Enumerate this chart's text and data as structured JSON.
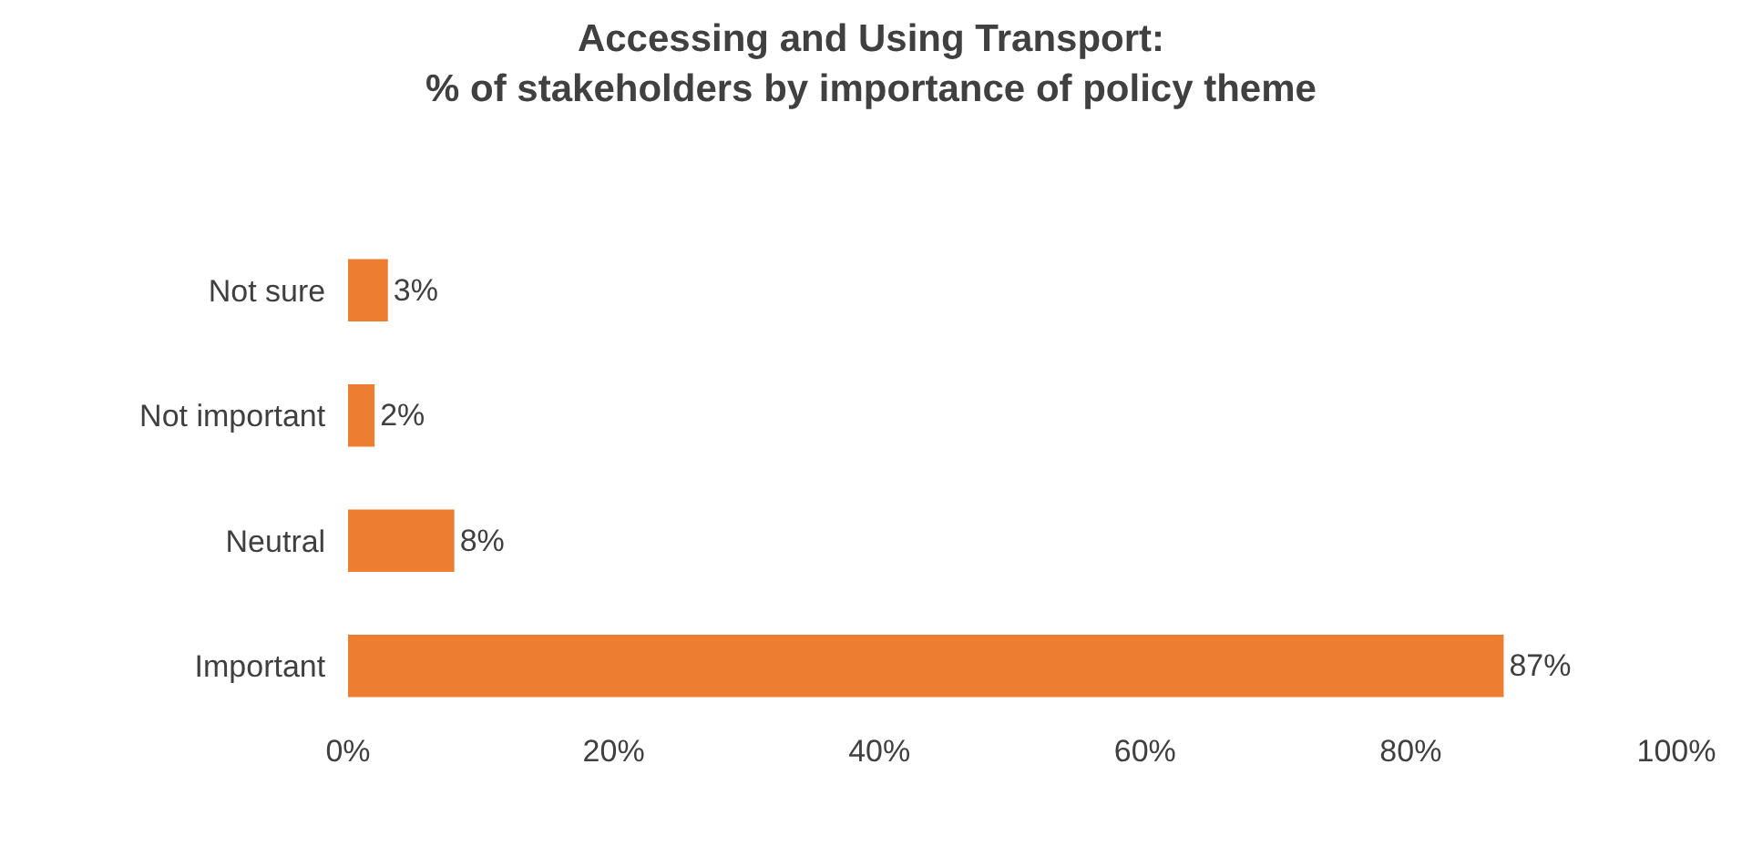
{
  "chart_data": {
    "type": "bar",
    "orientation": "horizontal",
    "title": "Accessing and Using Transport:\n% of stakeholders by importance of policy theme",
    "categories": [
      "Not sure",
      "Not important",
      "Neutral",
      "Important"
    ],
    "values": [
      3,
      2,
      8,
      87
    ],
    "value_labels": [
      "3%",
      "2%",
      "8%",
      "87%"
    ],
    "color": "#ed7d31",
    "xlim": [
      0,
      100
    ],
    "xticks": [
      {
        "value": 0,
        "label": "0%"
      },
      {
        "value": 20,
        "label": "20%"
      },
      {
        "value": 40,
        "label": "40%"
      },
      {
        "value": 60,
        "label": "60%"
      },
      {
        "value": 80,
        "label": "80%"
      },
      {
        "value": 100,
        "label": "100%"
      }
    ]
  }
}
